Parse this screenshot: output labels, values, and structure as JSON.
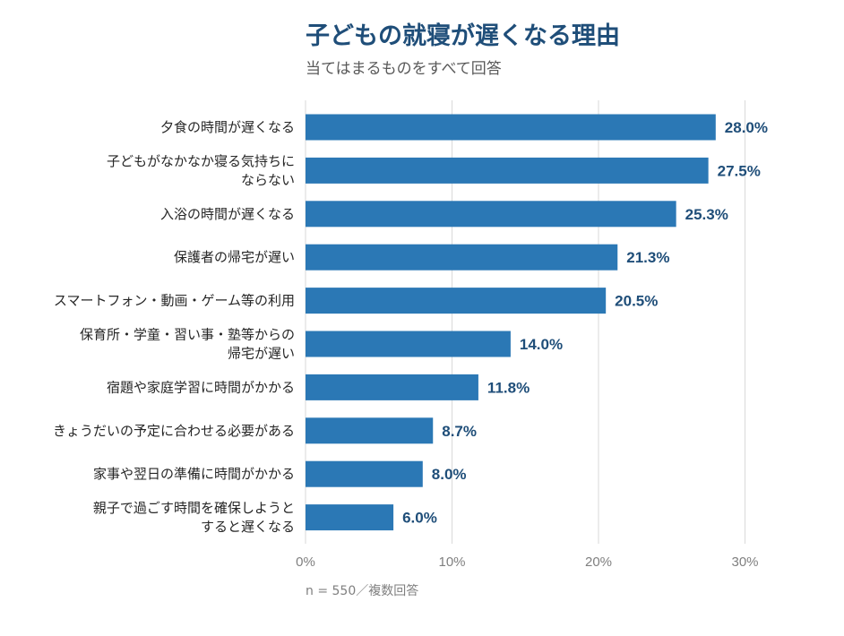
{
  "header": {
    "title": "子どもの就寝が遅くなる理由",
    "subtitle": "当てはまるものをすべて回答"
  },
  "footer": {
    "note": "n = 550／複数回答"
  },
  "colors": {
    "bar": "#2b78b5",
    "value_label": "#1f4e79",
    "grid": "#d9d9d9",
    "axis_text": "#7f7f7f"
  },
  "chart_data": {
    "type": "bar",
    "orientation": "horizontal",
    "title": "子どもの就寝が遅くなる理由",
    "subtitle": "当てはまるものをすべて回答",
    "xlabel": "",
    "ylabel": "",
    "xlim": [
      0,
      30
    ],
    "x_ticks": [
      0,
      10,
      20,
      30
    ],
    "x_tick_labels": [
      "0%",
      "10%",
      "20%",
      "30%"
    ],
    "grid": "vertical",
    "legend": "none",
    "categories": [
      [
        "夕食の時間が遅くなる"
      ],
      [
        "子どもがなかなか寝る気持ちに",
        "ならない"
      ],
      [
        "入浴の時間が遅くなる"
      ],
      [
        "保護者の帰宅が遅い"
      ],
      [
        "スマートフォン・動画・ゲーム等の利用"
      ],
      [
        "保育所・学童・習い事・塾等からの",
        "帰宅が遅い"
      ],
      [
        "宿題や家庭学習に時間がかかる"
      ],
      [
        "きょうだいの予定に合わせる必要がある"
      ],
      [
        "家事や翌日の準備に時間がかかる"
      ],
      [
        "親子で過ごす時間を確保しようと",
        "すると遅くなる"
      ]
    ],
    "values": [
      28.0,
      27.5,
      25.3,
      21.3,
      20.5,
      14.0,
      11.8,
      8.7,
      8.0,
      6.0
    ],
    "value_labels": [
      "28.0%",
      "27.5%",
      "25.3%",
      "21.3%",
      "20.5%",
      "14.0%",
      "11.8%",
      "8.7%",
      "8.0%",
      "6.0%"
    ]
  }
}
